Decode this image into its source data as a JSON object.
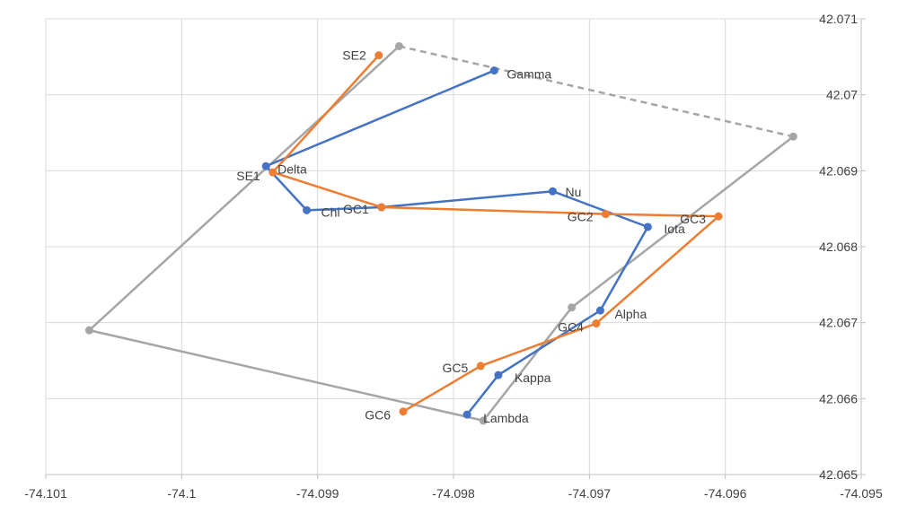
{
  "chart_data": {
    "type": "scatter",
    "title": "",
    "xlabel": "",
    "ylabel": "",
    "xlim": [
      -74.101,
      -74.095
    ],
    "ylim": [
      42.065,
      42.071
    ],
    "x_ticks": [
      "-74.101",
      "-74.1",
      "-74.099",
      "-74.098",
      "-74.097",
      "-74.096",
      "-74.095"
    ],
    "y_ticks": [
      "42.065",
      "42.066",
      "42.067",
      "42.068",
      "42.069",
      "42.07",
      "42.071"
    ],
    "grid": true,
    "legend": "none",
    "series": [
      {
        "color": "#a5a5a5",
        "line": "solid",
        "points": [
          {
            "x": -74.0955,
            "y": 42.06945
          },
          {
            "x": -74.09713,
            "y": 42.0672
          },
          {
            "x": -74.09778,
            "y": 42.06571
          },
          {
            "x": -74.10068,
            "y": 42.0669
          },
          {
            "x": -74.0984,
            "y": 42.07064
          }
        ],
        "dashed_segments": [
          {
            "from": {
              "x": -74.0984,
              "y": 42.07064
            },
            "to": {
              "x": -74.0955,
              "y": 42.06945
            }
          }
        ]
      },
      {
        "color": "#4472c4",
        "line": "solid",
        "points": [
          {
            "x": -74.0977,
            "y": 42.07032,
            "label": "Gamma"
          },
          {
            "x": -74.09938,
            "y": 42.06906,
            "label": "Delta"
          },
          {
            "x": -74.09908,
            "y": 42.06848,
            "label": "Chi"
          },
          {
            "x": -74.09853,
            "y": 42.06852
          },
          {
            "x": -74.09727,
            "y": 42.06873,
            "label": "Nu"
          },
          {
            "x": -74.09657,
            "y": 42.06826,
            "label": "Iota"
          },
          {
            "x": -74.09692,
            "y": 42.06716,
            "label": "Alpha"
          },
          {
            "x": -74.09767,
            "y": 42.06631,
            "label": "Kappa"
          },
          {
            "x": -74.0979,
            "y": 42.06579,
            "label": "Lambda"
          }
        ]
      },
      {
        "color": "#ed7d31",
        "line": "solid",
        "points": [
          {
            "x": -74.09855,
            "y": 42.07052,
            "label": "SE2"
          },
          {
            "x": -74.09933,
            "y": 42.06898,
            "label": "SE1"
          },
          {
            "x": -74.09853,
            "y": 42.06852,
            "label": "GC1"
          },
          {
            "x": -74.09688,
            "y": 42.06843,
            "label": "GC2"
          },
          {
            "x": -74.09605,
            "y": 42.0684,
            "label": "GC3"
          },
          {
            "x": -74.09695,
            "y": 42.06699,
            "label": "GC4"
          },
          {
            "x": -74.0978,
            "y": 42.06643,
            "label": "GC5"
          },
          {
            "x": -74.09837,
            "y": 42.06583,
            "label": "GC6"
          }
        ]
      }
    ]
  }
}
